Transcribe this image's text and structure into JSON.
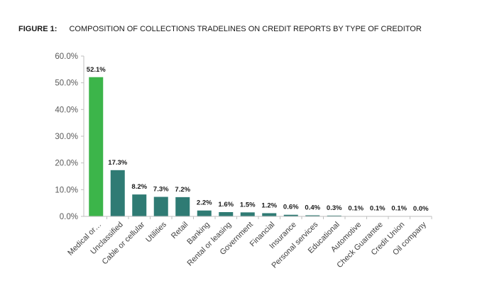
{
  "figure": {
    "label": "FIGURE 1:",
    "title": "COMPOSITION OF COLLECTIONS TRADELINES ON CREDIT REPORTS BY TYPE OF CREDITOR"
  },
  "colors": {
    "highlight": "#3cb54a",
    "bar": "#2f7b74",
    "axis": "#bfbfbf"
  },
  "chart_data": {
    "type": "bar",
    "title": "COMPOSITION OF COLLECTIONS TRADELINES ON CREDIT REPORTS BY TYPE OF CREDITOR",
    "categories": [
      "Medical or…",
      "Unclassified",
      "Cable or cellular",
      "Utilities",
      "Retail",
      "Banking",
      "Rental or leasing",
      "Government",
      "Financial",
      "Insurance",
      "Personal services",
      "Educational",
      "Automotive",
      "Check Guarantee",
      "Credit Union",
      "Oil company"
    ],
    "values": [
      52.1,
      17.3,
      8.2,
      7.3,
      7.2,
      2.2,
      1.6,
      1.5,
      1.2,
      0.6,
      0.4,
      0.3,
      0.1,
      0.1,
      0.1,
      0.0
    ],
    "data_labels": [
      "52.1%",
      "17.3%",
      "8.2%",
      "7.3%",
      "7.2%",
      "2.2%",
      "1.6%",
      "1.5%",
      "1.2%",
      "0.6%",
      "0.4%",
      "0.3%",
      "0.1%",
      "0.1%",
      "0.1%",
      "0.0%"
    ],
    "yticks": [
      "0.0%",
      "10.0%",
      "20.0%",
      "30.0%",
      "40.0%",
      "50.0%",
      "60.0%"
    ],
    "ylim": [
      0,
      60
    ],
    "highlight_index": 0,
    "grid": false,
    "legend": "none"
  }
}
